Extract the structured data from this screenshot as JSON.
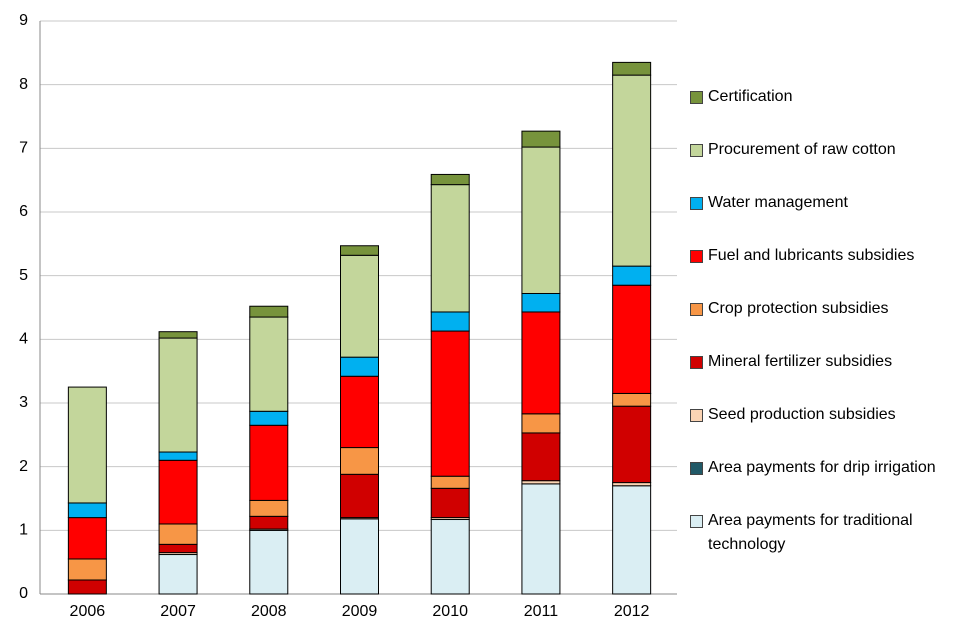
{
  "chart_data": {
    "type": "stacked_bar",
    "categories": [
      "2006",
      "2007",
      "2008",
      "2009",
      "2010",
      "2011",
      "2012"
    ],
    "series": [
      {
        "name": "Area payments for traditional technology",
        "color": "#daeef3",
        "values": [
          0,
          0.62,
          1.0,
          1.18,
          1.17,
          1.73,
          1.7
        ]
      },
      {
        "name": "Area payments for drip irrigation",
        "color": "#215967",
        "values": [
          0,
          0,
          0,
          0,
          0,
          0,
          0
        ]
      },
      {
        "name": "Seed production subsidies",
        "color": "#fbd4b4",
        "values": [
          0,
          0.03,
          0.02,
          0.02,
          0.03,
          0.05,
          0.05
        ]
      },
      {
        "name": "Mineral fertilizer subsidies",
        "color": "#d00000",
        "values": [
          0.22,
          0.13,
          0.2,
          0.68,
          0.46,
          0.75,
          1.2
        ]
      },
      {
        "name": "Crop protection subsidies",
        "color": "#f79646",
        "values": [
          0.33,
          0.32,
          0.25,
          0.42,
          0.19,
          0.3,
          0.2
        ]
      },
      {
        "name": "Fuel and lubricants subsidies",
        "color": "#ff0000",
        "values": [
          0.65,
          1.0,
          1.18,
          1.12,
          2.28,
          1.6,
          1.7
        ]
      },
      {
        "name": "Water management",
        "color": "#00b0f0",
        "values": [
          0.23,
          0.13,
          0.22,
          0.3,
          0.3,
          0.29,
          0.3
        ]
      },
      {
        "name": "Procurement of raw cotton",
        "color": "#c3d69b",
        "values": [
          1.82,
          1.79,
          1.48,
          1.6,
          2.0,
          2.3,
          3.0
        ]
      },
      {
        "name": "Certification",
        "color": "#77933c",
        "values": [
          0,
          0.1,
          0.17,
          0.15,
          0.16,
          0.25,
          0.2
        ]
      }
    ],
    "ylim": [
      0,
      9
    ],
    "yticks": [
      0,
      1,
      2,
      3,
      4,
      5,
      6,
      7,
      8,
      9
    ],
    "grid": true,
    "legend": "right"
  }
}
